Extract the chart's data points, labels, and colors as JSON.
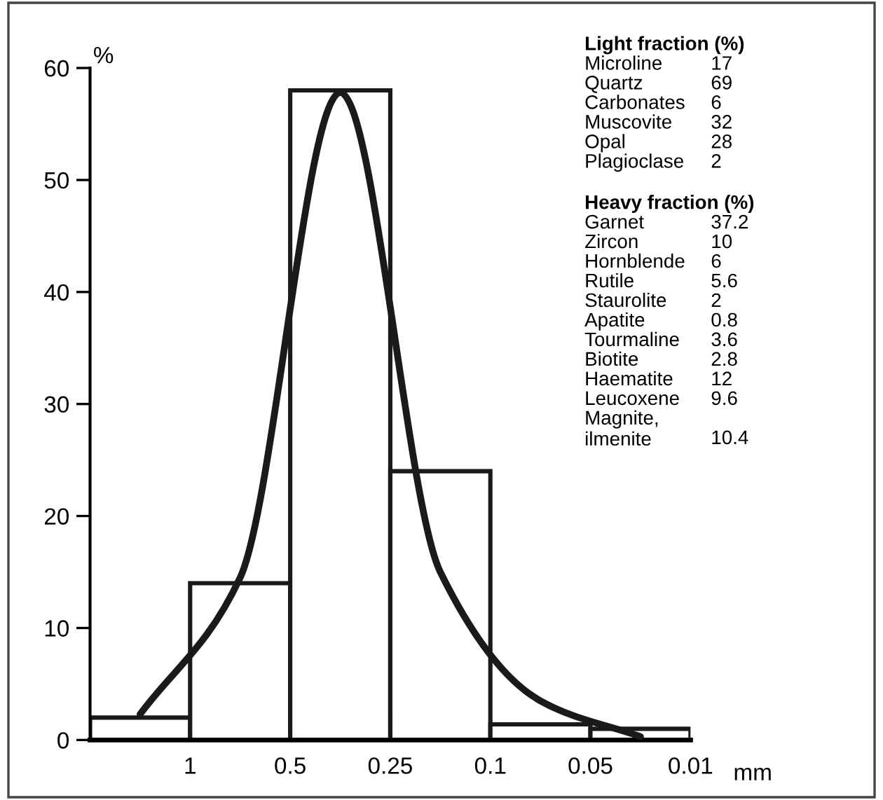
{
  "chart_data": {
    "type": "bar",
    "ylabel": "%",
    "xlabel": "mm",
    "categories": [
      null,
      null,
      null,
      null,
      null,
      null
    ],
    "series": [
      {
        "color": "#ffffff",
        "values": [
          2,
          14,
          58,
          24,
          1.4,
          1
        ]
      },
      {
        "type": "line",
        "color": "#1a1a1a",
        "values": [
          2.3,
          14.5,
          57.8,
          15,
          3.5,
          0.3
        ]
      }
    ],
    "ylim": [
      0,
      60
    ],
    "yticks": [
      0,
      10,
      20,
      30,
      40,
      50,
      60
    ],
    "grid": false,
    "legend": false,
    "marker": "none",
    "line_style": "solid",
    "annotations": [
      "1",
      "0.5",
      "0.25",
      "0.1",
      "0.05",
      "0.01",
      "Light fraction (%)",
      "Microline 17",
      "Quartz 69",
      "Carbonates 6",
      "Muscovite 32",
      "Opal 28",
      "Plagioclase 2",
      "Heavy fraction (%)",
      "Garnet 37.2",
      "Zircon 10",
      "Hornblende 6",
      "Rutile 5.6",
      "Staurolite 2",
      "Apatite 0.8",
      "Tourmaline 3.6",
      "Biotite 2.8",
      "Haematite 12",
      "Leucoxene 9.6",
      "Magnite,\nilmenite 10.4"
    ]
  }
}
